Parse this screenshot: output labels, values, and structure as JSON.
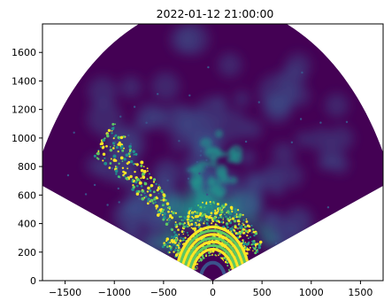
{
  "chart_data": {
    "type": "heatmap",
    "title": "2022-01-12 21:00:00",
    "xlabel": "",
    "ylabel": "",
    "xlim": [
      -1730,
      1730
    ],
    "ylim": [
      0,
      1800
    ],
    "x_ticks": [
      -1500,
      -1000,
      -500,
      0,
      500,
      1000,
      1500
    ],
    "x_tick_labels": [
      "−1500",
      "−1000",
      "−500",
      "0",
      "500",
      "1000",
      "1500"
    ],
    "y_ticks": [
      0,
      200,
      400,
      600,
      800,
      1000,
      1200,
      1400,
      1600
    ],
    "y_tick_labels": [
      "0",
      "200",
      "400",
      "600",
      "800",
      "1000",
      "1200",
      "1400",
      "1600"
    ],
    "grid": false,
    "colormap": "viridis",
    "colors": {
      "low": "#440154",
      "low_mid": "#3b528b",
      "mid": "#21918c",
      "high_mid": "#5ec962",
      "high": "#fde725",
      "background": "#ffffff"
    },
    "sector": {
      "apex": [
        0,
        0
      ],
      "max_range": 1950,
      "left_edge_angle_deg_from_vertical": -69,
      "right_edge_angle_deg_from_vertical": 69
    },
    "features": {
      "bright_rings_range": [
        220,
        380
      ],
      "inner_ring_range": 175,
      "clutter_band_range": [
        380,
        560
      ],
      "left_bright_streak_range": [
        600,
        1500
      ]
    }
  }
}
